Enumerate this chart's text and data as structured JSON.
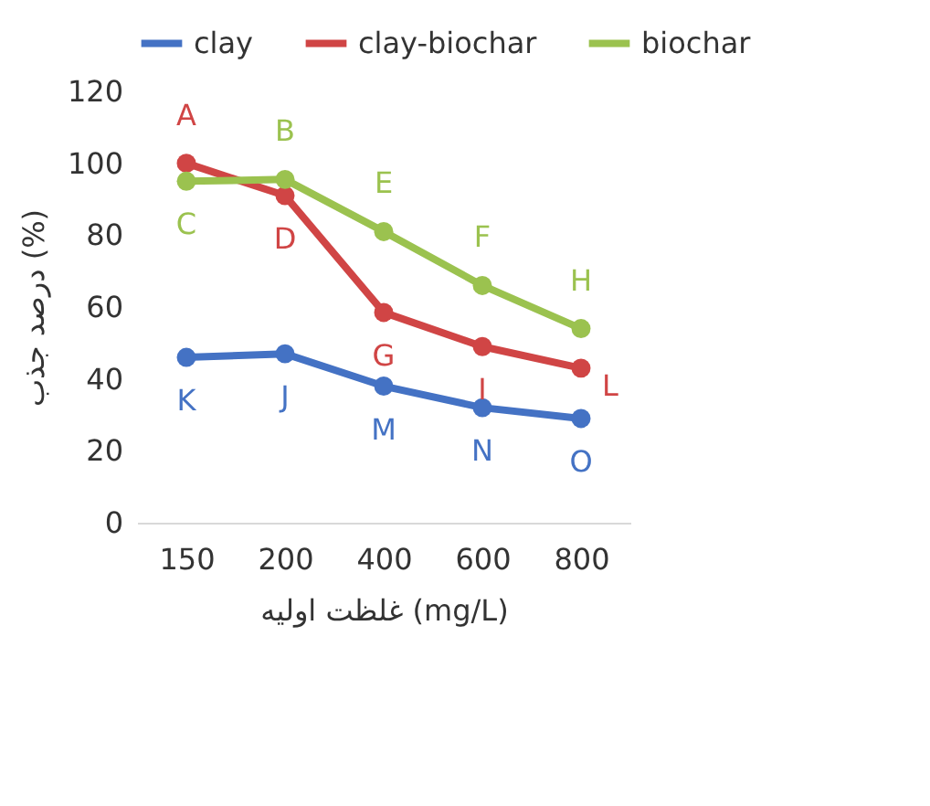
{
  "chart_data": {
    "type": "line",
    "xlabel": "غلظت اولیه (mg/L)",
    "ylabel": "درصد جذب (%)",
    "categories": [
      "150",
      "200",
      "400",
      "600",
      "800"
    ],
    "series": [
      {
        "name": "clay",
        "color": "#4472c4",
        "values": [
          46,
          47,
          38,
          32,
          29
        ]
      },
      {
        "name": "clay-biochar",
        "color": "#d04545",
        "values": [
          100,
          91,
          58.5,
          49,
          43
        ]
      },
      {
        "name": "biochar",
        "color": "#9bc24f",
        "values": [
          95,
          95.5,
          81,
          66,
          54
        ]
      }
    ],
    "ylim": [
      0,
      120
    ],
    "yticks": [
      0,
      20,
      40,
      60,
      80,
      100,
      120
    ],
    "grid": false,
    "legend": "top",
    "marker": "circle",
    "line_style": "solid",
    "annotations": [
      {
        "text": "A",
        "x": "150",
        "y": 100
      },
      {
        "text": "B",
        "x": "200",
        "y": 95.5
      },
      {
        "text": "C",
        "x": "150",
        "y": 95
      },
      {
        "text": "D",
        "x": "200",
        "y": 91
      },
      {
        "text": "E",
        "x": "400",
        "y": 81
      },
      {
        "text": "F",
        "x": "600",
        "y": 66
      },
      {
        "text": "G",
        "x": "400",
        "y": 58.5
      },
      {
        "text": "I",
        "x": "600",
        "y": 49
      },
      {
        "text": "H",
        "x": "800",
        "y": 54
      },
      {
        "text": "L",
        "x": "800",
        "y": 43
      },
      {
        "text": "K",
        "x": "150",
        "y": 46
      },
      {
        "text": "J",
        "x": "200",
        "y": 47
      },
      {
        "text": "M",
        "x": "400",
        "y": 38
      },
      {
        "text": "N",
        "x": "600",
        "y": 32
      },
      {
        "text": "O",
        "x": "800",
        "y": 29
      }
    ]
  }
}
